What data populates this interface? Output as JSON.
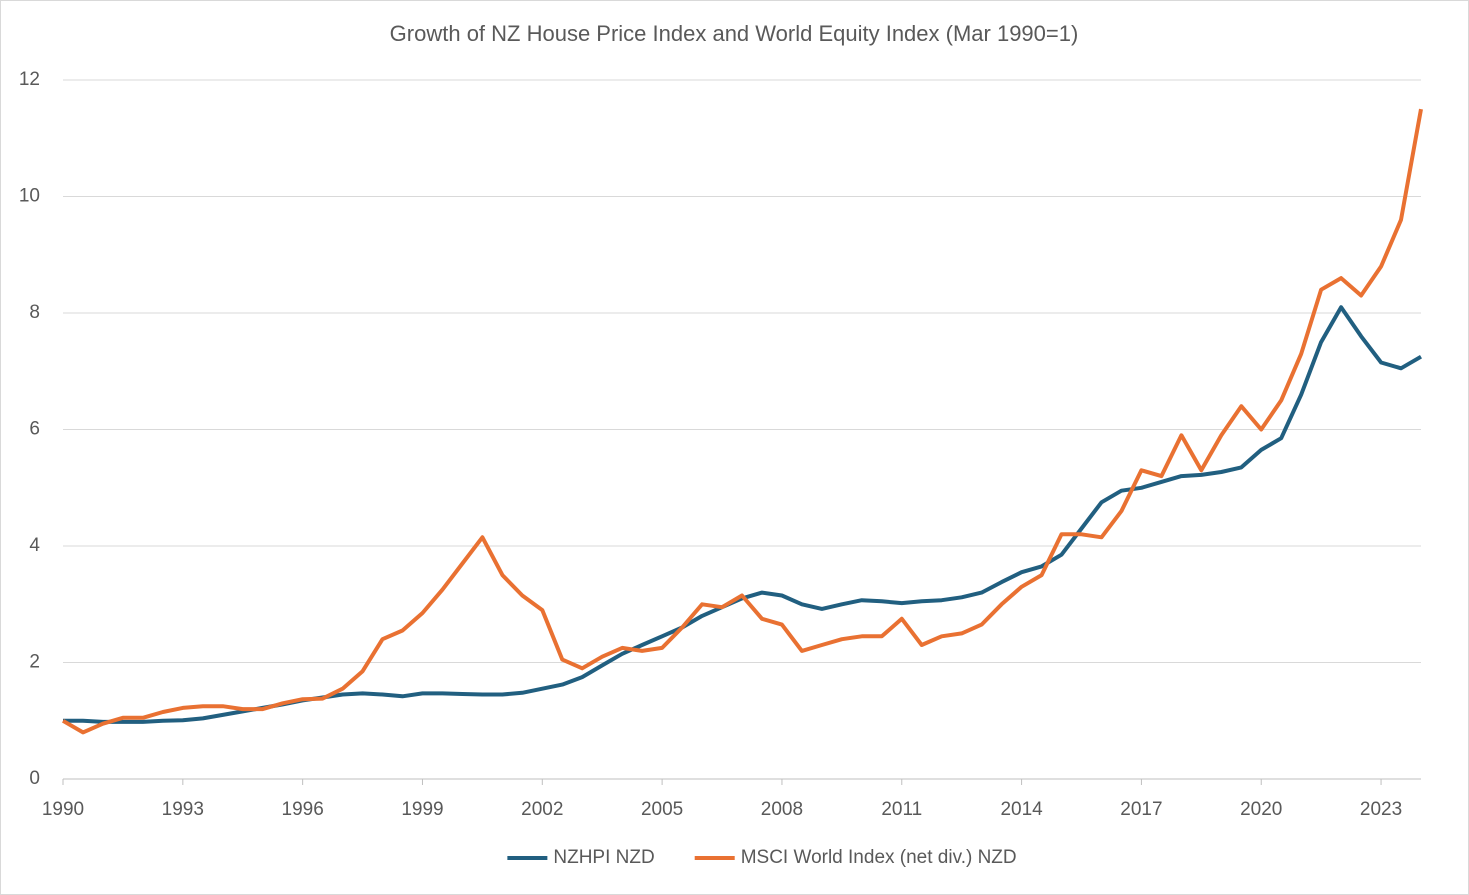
{
  "chart_data": {
    "type": "line",
    "title": "Growth of NZ House Price Index and World Equity Index (Mar 1990=1)",
    "x": [
      1990,
      1990.5,
      1991,
      1991.5,
      1992,
      1992.5,
      1993,
      1993.5,
      1994,
      1994.5,
      1995,
      1995.5,
      1996,
      1996.5,
      1997,
      1997.5,
      1998,
      1998.5,
      1999,
      1999.5,
      2000,
      2000.5,
      2001,
      2001.5,
      2002,
      2002.5,
      2003,
      2003.5,
      2004,
      2004.5,
      2005,
      2005.5,
      2006,
      2006.5,
      2007,
      2007.5,
      2008,
      2008.5,
      2009,
      2009.5,
      2010,
      2010.5,
      2011,
      2011.5,
      2012,
      2012.5,
      2013,
      2013.5,
      2014,
      2014.5,
      2015,
      2015.5,
      2016,
      2016.5,
      2017,
      2017.5,
      2018,
      2018.5,
      2019,
      2019.5,
      2020,
      2020.5,
      2021,
      2021.5,
      2022,
      2022.5,
      2023,
      2023.5,
      2024
    ],
    "series": [
      {
        "name": "NZHPI NZD",
        "color": "#215f80",
        "values": [
          1.0,
          1.0,
          0.98,
          0.98,
          0.98,
          1.0,
          1.01,
          1.04,
          1.1,
          1.16,
          1.22,
          1.28,
          1.35,
          1.4,
          1.45,
          1.47,
          1.45,
          1.42,
          1.47,
          1.47,
          1.46,
          1.45,
          1.45,
          1.48,
          1.55,
          1.62,
          1.75,
          1.95,
          2.15,
          2.3,
          2.45,
          2.6,
          2.8,
          2.95,
          3.1,
          3.2,
          3.15,
          3.0,
          2.92,
          3.0,
          3.07,
          3.05,
          3.02,
          3.05,
          3.07,
          3.12,
          3.2,
          3.38,
          3.55,
          3.65,
          3.85,
          4.3,
          4.75,
          4.95,
          5.0,
          5.1,
          5.2,
          5.22,
          5.27,
          5.35,
          5.65,
          5.85,
          6.6,
          7.5,
          8.1,
          7.6,
          7.15,
          7.05,
          7.25
        ]
      },
      {
        "name": "MSCI World Index (net div.) NZD",
        "color": "#e97132",
        "values": [
          1.0,
          0.8,
          0.95,
          1.05,
          1.05,
          1.15,
          1.22,
          1.25,
          1.25,
          1.2,
          1.2,
          1.3,
          1.37,
          1.38,
          1.55,
          1.85,
          2.4,
          2.55,
          2.85,
          3.25,
          3.7,
          4.15,
          3.5,
          3.15,
          2.9,
          2.05,
          1.9,
          2.1,
          2.25,
          2.2,
          2.25,
          2.6,
          3.0,
          2.95,
          3.15,
          2.75,
          2.65,
          2.2,
          2.3,
          2.4,
          2.45,
          2.45,
          2.75,
          2.3,
          2.45,
          2.5,
          2.65,
          3.0,
          3.3,
          3.5,
          4.2,
          4.2,
          4.15,
          4.6,
          5.3,
          5.2,
          5.9,
          5.3,
          5.9,
          6.4,
          6.0,
          6.5,
          7.3,
          8.4,
          8.6,
          8.3,
          8.8,
          9.6,
          11.5
        ]
      }
    ],
    "xlim": [
      1990,
      2024
    ],
    "xticks": [
      1990,
      1993,
      1996,
      1999,
      2002,
      2005,
      2008,
      2011,
      2014,
      2017,
      2020,
      2023
    ],
    "ylim": [
      0,
      12
    ],
    "yticks": [
      0,
      2,
      4,
      6,
      8,
      10,
      12
    ],
    "grid": true,
    "legend": "bottom"
  }
}
